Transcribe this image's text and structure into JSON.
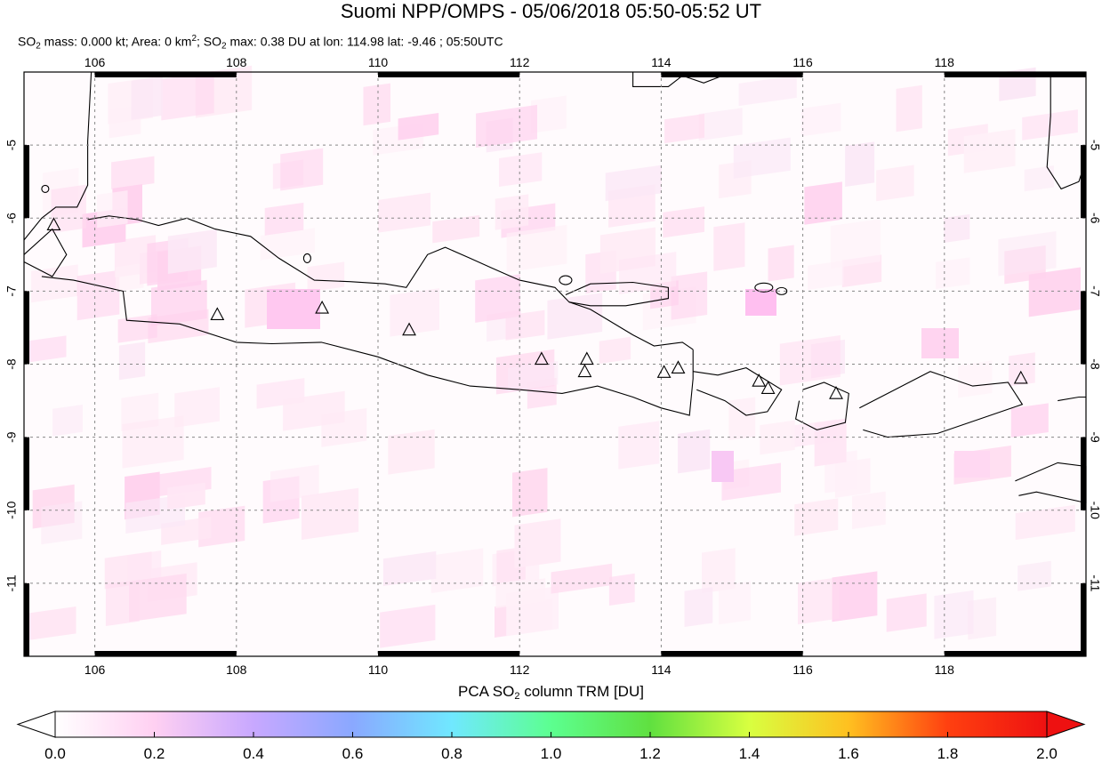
{
  "header": {
    "title": "Suomi NPP/OMPS - 05/06/2018 05:50-05:52 UT",
    "subtitle_parts": {
      "so2_mass_label": "SO",
      "so2_mass_rest": " mass: 0.000 kt; Area: 0 km",
      "area_exp": "2",
      "so2_max_label": "; SO",
      "so2_max_rest": " max: 0.38 DU at lon: 114.98 lat: -9.46 ; 05:50UTC",
      "sub2": "2"
    }
  },
  "map": {
    "lon_range": [
      105,
      120
    ],
    "lat_range": [
      -12,
      -4
    ],
    "lon_ticks": [
      106,
      108,
      110,
      112,
      114,
      116,
      118
    ],
    "lat_ticks": [
      -5,
      -6,
      -7,
      -8,
      -9,
      -10,
      -11
    ],
    "lon_tick_labels": [
      "106",
      "108",
      "110",
      "112",
      "114",
      "116",
      "118"
    ],
    "lat_tick_labels": [
      "-5",
      "-6",
      "-7",
      "-8",
      "-9",
      "-10",
      "-11"
    ],
    "volcanoes": [
      {
        "lon": 105.42,
        "lat": -6.1
      },
      {
        "lon": 107.73,
        "lat": -7.33
      },
      {
        "lon": 109.21,
        "lat": -7.24
      },
      {
        "lon": 110.44,
        "lat": -7.54
      },
      {
        "lon": 112.31,
        "lat": -7.94
      },
      {
        "lon": 112.95,
        "lat": -7.94
      },
      {
        "lon": 112.92,
        "lat": -8.11
      },
      {
        "lon": 114.04,
        "lat": -8.12
      },
      {
        "lon": 114.24,
        "lat": -8.06
      },
      {
        "lon": 115.38,
        "lat": -8.24
      },
      {
        "lon": 115.51,
        "lat": -8.34
      },
      {
        "lon": 116.47,
        "lat": -8.41
      },
      {
        "lon": 119.08,
        "lat": -8.2
      }
    ],
    "colors": {
      "coast": "#000000",
      "grid": "#888888",
      "frame": "#000000"
    }
  },
  "colorbar": {
    "title_main": "PCA SO",
    "title_sub": "2",
    "title_rest": " column TRM [DU]",
    "tick_labels": [
      "0.0",
      "0.2",
      "0.4",
      "0.6",
      "0.8",
      "1.0",
      "1.2",
      "1.4",
      "1.6",
      "1.8",
      "2.0"
    ],
    "min": 0.0,
    "max": 2.0,
    "stops": [
      "#ffffff",
      "#ffd0f2",
      "#c8a8ff",
      "#8aa8ff",
      "#70e8ff",
      "#5cff90",
      "#60e040",
      "#d8ff40",
      "#ffc020",
      "#ff4010",
      "#ee1111"
    ]
  }
}
